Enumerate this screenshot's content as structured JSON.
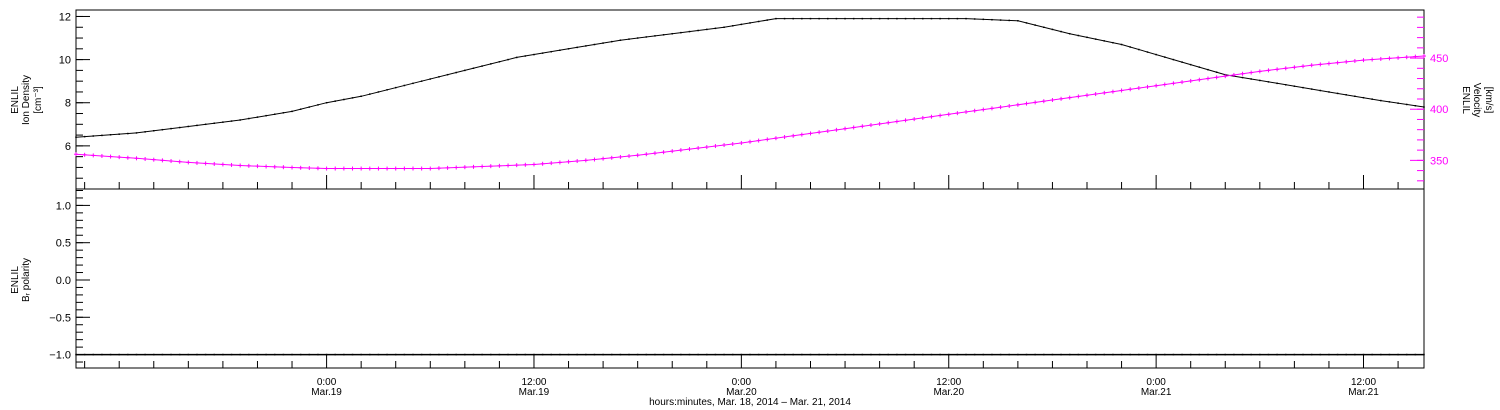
{
  "chart_data": [
    {
      "panel": "top",
      "type": "line",
      "x_unit": "hours since 0:00 Mar.19, 2014",
      "x_range": [
        -14.5,
        63.5
      ],
      "left_axis": {
        "label_lines": [
          "ENLIL",
          "Ion Density",
          "[cm⁻³]"
        ],
        "ylim": [
          4.0,
          12.3
        ],
        "major_ticks": [
          6,
          8,
          10,
          12
        ],
        "tick_labels": [
          "6",
          "8",
          "10",
          "12"
        ],
        "color": "#000000"
      },
      "right_axis": {
        "label_lines": [
          "ENLIL",
          "Velocity",
          "[km/s]"
        ],
        "ylim": [
          322,
          497
        ],
        "major_ticks": [
          350,
          400,
          450
        ],
        "tick_labels": [
          "350",
          "400",
          "450"
        ],
        "color": "#ff00ff"
      },
      "series": [
        {
          "axis": "left",
          "color": "#000000",
          "x": [
            -14.5,
            -11,
            -8,
            -5,
            -2,
            0,
            2,
            5,
            8,
            11,
            14,
            17,
            20,
            23,
            26,
            29,
            31,
            34,
            37,
            40,
            43,
            46,
            49,
            52,
            55,
            58,
            61,
            63.5
          ],
          "y": [
            6.4,
            6.6,
            6.9,
            7.2,
            7.6,
            8.0,
            8.3,
            8.9,
            9.5,
            10.1,
            10.5,
            10.9,
            11.2,
            11.5,
            11.9,
            11.9,
            11.9,
            11.9,
            11.9,
            11.8,
            11.2,
            10.7,
            10.0,
            9.3,
            8.9,
            8.5,
            8.1,
            7.8
          ]
        },
        {
          "axis": "right",
          "color": "#ff00ff",
          "x": [
            -14.5,
            -11,
            -8,
            -5,
            -2,
            0,
            3,
            6,
            9,
            12,
            15,
            18,
            21,
            24,
            27,
            30,
            33,
            36,
            39,
            42,
            45,
            48,
            51,
            54,
            57,
            60,
            63.5
          ],
          "y": [
            356,
            352,
            348,
            345,
            343,
            342,
            342,
            342,
            344,
            346,
            350,
            355,
            361,
            367,
            374,
            381,
            388,
            395,
            402,
            409,
            416,
            423,
            430,
            437,
            443,
            448,
            452
          ]
        }
      ]
    },
    {
      "panel": "bottom",
      "type": "line",
      "x_unit": "hours since 0:00 Mar.19, 2014",
      "x_range": [
        -14.5,
        63.5
      ],
      "left_axis": {
        "label_lines": [
          "ENLIL",
          "Bᵣ polarity"
        ],
        "ylim": [
          -1.18,
          1.22
        ],
        "major_ticks": [
          -1.0,
          -0.5,
          0.0,
          0.5,
          1.0
        ],
        "tick_labels": [
          "−1.0",
          "−0.5",
          "0.0",
          "0.5",
          "1.0"
        ],
        "color": "#000000"
      },
      "series": [
        {
          "axis": "left",
          "color": "#000000",
          "x": [
            -14.5,
            63.5
          ],
          "y": [
            -1.0,
            -1.0
          ]
        }
      ]
    }
  ],
  "time_axis": {
    "ticks": [
      {
        "hour": 0,
        "time": "0:00",
        "date": "Mar.19"
      },
      {
        "hour": 12,
        "time": "12:00",
        "date": "Mar.19"
      },
      {
        "hour": 24,
        "time": "0:00",
        "date": "Mar.20"
      },
      {
        "hour": 36,
        "time": "12:00",
        "date": "Mar.20"
      },
      {
        "hour": 48,
        "time": "0:00",
        "date": "Mar.21"
      },
      {
        "hour": 60,
        "time": "12:00",
        "date": "Mar.21"
      }
    ],
    "title": "hours:minutes, Mar. 18, 2014 – Mar. 21, 2014"
  }
}
